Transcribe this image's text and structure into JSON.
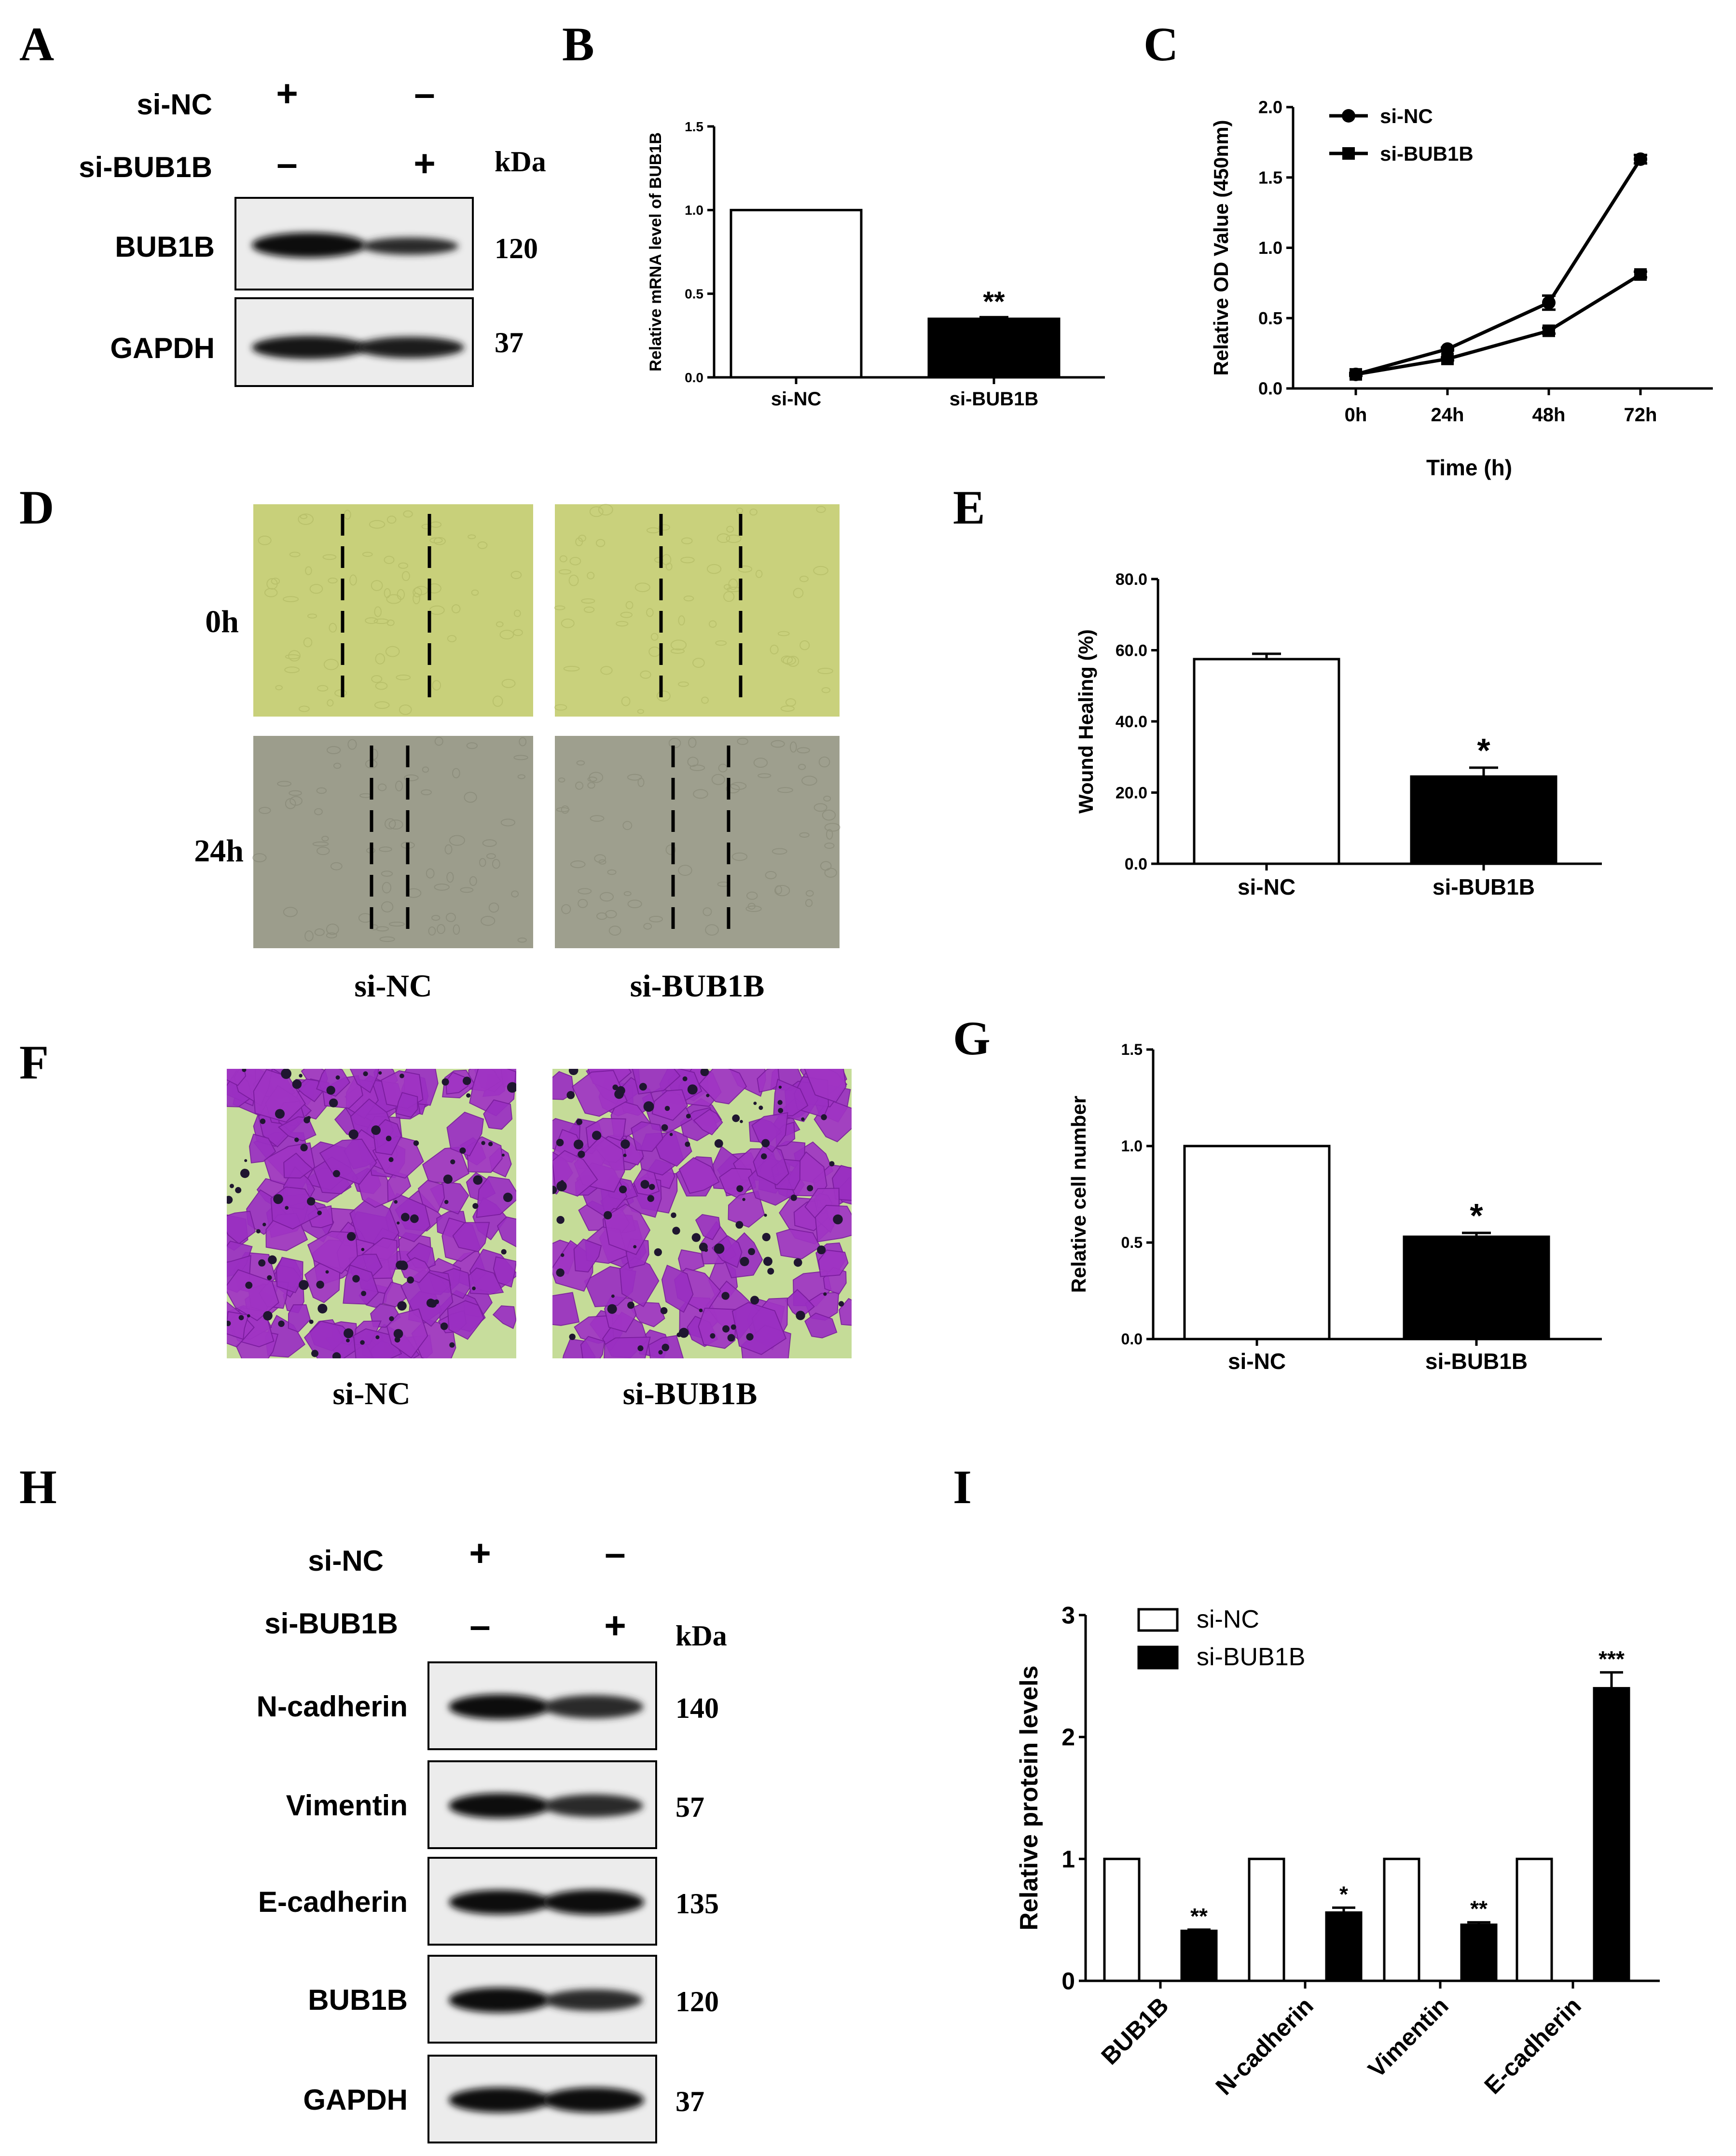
{
  "panel_letters": [
    "A",
    "B",
    "C",
    "D",
    "E",
    "F",
    "G",
    "H",
    "I"
  ],
  "colors": {
    "ink": "#000000",
    "paper": "#ffffff",
    "wound_0h": "#c8d07a",
    "wound_24h": "#9c9d8c",
    "transwell_bg": "#c7dd9c",
    "transwell_cell": "#a034c4"
  },
  "panel_a": {
    "conditions": [
      {
        "label": "si-NC",
        "marks": [
          "+",
          "–"
        ]
      },
      {
        "label": "si-BUB1B",
        "marks": [
          "–",
          "+"
        ]
      }
    ],
    "kda_label": "kDa",
    "blots": [
      {
        "label": "BUB1B",
        "kda": "120"
      },
      {
        "label": "GAPDH",
        "kda": "37"
      }
    ]
  },
  "panel_d": {
    "rows": [
      "0h",
      "24h"
    ],
    "columns": [
      "si-NC",
      "si-BUB1B"
    ]
  },
  "panel_f": {
    "columns": [
      "si-NC",
      "si-BUB1B"
    ]
  },
  "panel_h": {
    "conditions": [
      {
        "label": "si-NC",
        "marks": [
          "+",
          "–"
        ]
      },
      {
        "label": "si-BUB1B",
        "marks": [
          "–",
          "+"
        ]
      }
    ],
    "kda_label": "kDa",
    "blots": [
      {
        "label": "N-cadherin",
        "kda": "140"
      },
      {
        "label": "Vimentin",
        "kda": "57"
      },
      {
        "label": "E-cadherin",
        "kda": "135"
      },
      {
        "label": "BUB1B",
        "kda": "120"
      },
      {
        "label": "GAPDH",
        "kda": "37"
      }
    ]
  },
  "chart_data": [
    {
      "panel": "B",
      "type": "bar",
      "categories": [
        "si-NC",
        "si-BUB1B"
      ],
      "values": [
        1.0,
        0.35
      ],
      "errors": [
        0,
        0.01
      ],
      "significance": [
        "",
        "**"
      ],
      "ylabel": "Relative mRNA level of BUB1B",
      "ylim": [
        0,
        1.5
      ],
      "yticks": [
        "0.0",
        "0.5",
        "1.0",
        "1.5"
      ],
      "grid": false
    },
    {
      "panel": "C",
      "type": "line",
      "x": [
        "0h",
        "24h",
        "48h",
        "72h"
      ],
      "series": [
        {
          "name": "si-NC",
          "values": [
            0.1,
            0.28,
            0.61,
            1.63
          ],
          "errors": [
            0.01,
            0.01,
            0.05,
            0.03
          ],
          "marker": "circle"
        },
        {
          "name": "si-BUB1B",
          "values": [
            0.1,
            0.21,
            0.41,
            0.81
          ],
          "errors": [
            0.01,
            0.01,
            0.02,
            0.02
          ],
          "marker": "square"
        }
      ],
      "xlabel": "Time (h)",
      "ylabel": "Relative OD Value (450nm)",
      "ylim": [
        0,
        2.0
      ],
      "yticks": [
        "0.0",
        "0.5",
        "1.0",
        "1.5",
        "2.0"
      ],
      "legend": "top-left",
      "grid": false
    },
    {
      "panel": "E",
      "type": "bar",
      "categories": [
        "si-NC",
        "si-BUB1B"
      ],
      "values": [
        57.5,
        24.5
      ],
      "errors": [
        1.5,
        2.5
      ],
      "significance": [
        "",
        "*"
      ],
      "ylabel": "Wound Healing (%)",
      "ylim": [
        0,
        80
      ],
      "yticks": [
        "0.0",
        "20.0",
        "40.0",
        "60.0",
        "80.0"
      ],
      "grid": false
    },
    {
      "panel": "G",
      "type": "bar",
      "categories": [
        "si-NC",
        "si-BUB1B"
      ],
      "values": [
        1.0,
        0.53
      ],
      "errors": [
        0,
        0.02
      ],
      "significance": [
        "",
        "*"
      ],
      "ylabel": "Relative cell number",
      "ylim": [
        0,
        1.5
      ],
      "yticks": [
        "0.0",
        "0.5",
        "1.0",
        "1.5"
      ],
      "grid": false
    },
    {
      "panel": "I",
      "type": "bar",
      "categories": [
        "BUB1B",
        "N-cadherin",
        "Vimentin",
        "E-cadherin"
      ],
      "series": [
        {
          "name": "si-NC",
          "values": [
            1.0,
            1.0,
            1.0,
            1.0
          ],
          "errors": [
            0,
            0,
            0,
            0
          ]
        },
        {
          "name": "si-BUB1B",
          "values": [
            0.41,
            0.56,
            0.46,
            2.4
          ],
          "errors": [
            0.01,
            0.04,
            0.02,
            0.13
          ]
        }
      ],
      "significance": [
        "**",
        "*",
        "**",
        "***"
      ],
      "ylabel": "Relative protein levels",
      "ylim": [
        0,
        3
      ],
      "yticks": [
        "0",
        "1",
        "2",
        "3"
      ],
      "legend": "top-left",
      "grid": false
    }
  ]
}
